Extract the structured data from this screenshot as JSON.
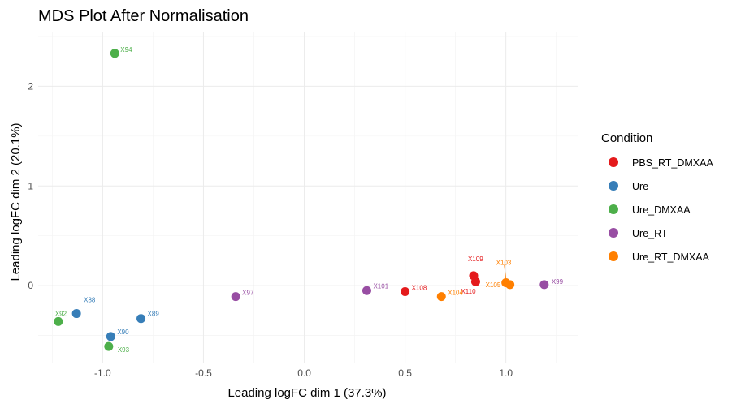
{
  "chart_data": {
    "type": "scatter",
    "title": "MDS Plot After Normalisation",
    "xlabel": "Leading logFC dim 1 (37.3%)",
    "ylabel": "Leading logFC dim 2 (20.1%)",
    "xlim": [
      -1.32,
      1.36
    ],
    "ylim": [
      -0.78,
      2.54
    ],
    "x_ticks": [
      -1.0,
      -0.5,
      0.0,
      0.5,
      1.0
    ],
    "x_tick_labels": [
      "-1.0",
      "-0.5",
      "0.0",
      "0.5",
      "1.0"
    ],
    "y_ticks": [
      0,
      1,
      2
    ],
    "y_tick_labels": [
      "0",
      "1",
      "2"
    ],
    "grid": true,
    "legend_position": "right",
    "legend_title": "Condition",
    "series": [
      {
        "name": "PBS_RT_DMXAA",
        "color": "#e41a1c",
        "points": [
          {
            "label": "X109",
            "x": 0.84,
            "y": 0.1
          },
          {
            "label": "X110",
            "x": 0.85,
            "y": 0.04
          },
          {
            "label": "X108",
            "x": 0.5,
            "y": -0.06
          }
        ]
      },
      {
        "name": "Ure",
        "color": "#377eb8",
        "points": [
          {
            "label": "X88",
            "x": -1.13,
            "y": -0.28
          },
          {
            "label": "X89",
            "x": -0.81,
            "y": -0.33
          },
          {
            "label": "X90",
            "x": -0.96,
            "y": -0.51
          }
        ]
      },
      {
        "name": "Ure_DMXAA",
        "color": "#4daf4a",
        "points": [
          {
            "label": "X94",
            "x": -0.94,
            "y": 2.33
          },
          {
            "label": "X92",
            "x": -1.22,
            "y": -0.36
          },
          {
            "label": "X93",
            "x": -0.97,
            "y": -0.61
          }
        ]
      },
      {
        "name": "Ure_RT",
        "color": "#984ea3",
        "points": [
          {
            "label": "X99",
            "x": 1.19,
            "y": 0.01
          },
          {
            "label": "X101",
            "x": 0.31,
            "y": -0.05
          },
          {
            "label": "X97",
            "x": -0.34,
            "y": -0.11
          }
        ]
      },
      {
        "name": "Ure_RT_DMXAA",
        "color": "#ff7f00",
        "points": [
          {
            "label": "X103",
            "x": 1.0,
            "y": 0.03
          },
          {
            "label": "X105",
            "x": 1.02,
            "y": 0.01
          },
          {
            "label": "X104",
            "x": 0.68,
            "y": -0.11
          }
        ]
      }
    ]
  }
}
